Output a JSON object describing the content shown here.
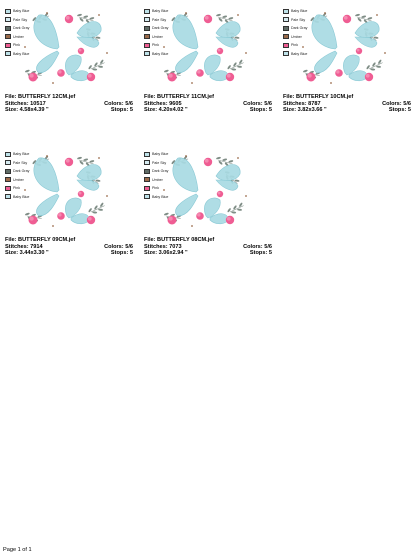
{
  "colors": {
    "baby_blue": "#bfe3ea",
    "pale_sky": "#d7ecf2",
    "dark_gray": "#5f6b66",
    "umber": "#9a6a4a",
    "pink": "#ef5d93",
    "butterfly": "#a9dbe3",
    "leaf": "#7f8d86"
  },
  "legend_items": [
    {
      "label": "Baby Blue",
      "color": "#bfe3ea"
    },
    {
      "label": "Pale Sky",
      "color": "#d7ecf2"
    },
    {
      "label": "Dark Gray",
      "color": "#5f6b66"
    },
    {
      "label": "Umber",
      "color": "#9a6a4a"
    },
    {
      "label": "Pink",
      "color": "#ef5d93"
    },
    {
      "label": "Baby Blue",
      "color": "#bfe3ea"
    }
  ],
  "designs": [
    {
      "file": "File: BUTTERFLY 12CM.jef",
      "stitches": "Stitches: 10517",
      "colors": "Colors: 5/6",
      "size": "Size: 4.58x4.39 \"",
      "stops": "Stops: 5"
    },
    {
      "file": "File: BUTTERFLY 11CM.jef",
      "stitches": "Stitches: 9605",
      "colors": "Colors: 5/6",
      "size": "Size: 4.20x4.02 \"",
      "stops": "Stops: 5"
    },
    {
      "file": "File: BUTTERFLY 10CM.jef",
      "stitches": "Stitches: 8787",
      "colors": "Colors: 5/6",
      "size": "Size: 3.82x3.66 \"",
      "stops": "Stops: 5"
    },
    {
      "file": "File: BUTTERFLY 09CM.jef",
      "stitches": "Stitches: 7914",
      "colors": "Colors: 5/6",
      "size": "Size: 3.44x3.30 \"",
      "stops": "Stops: 5"
    },
    {
      "file": "File: BUTTERFLY 08CM.jef",
      "stitches": "Stitches: 7073",
      "colors": "Colors: 5/6",
      "size": "Size: 3.06x2.94 \"",
      "stops": "Stops: 5"
    }
  ],
  "footer": {
    "page": "Page 1 of 1"
  }
}
